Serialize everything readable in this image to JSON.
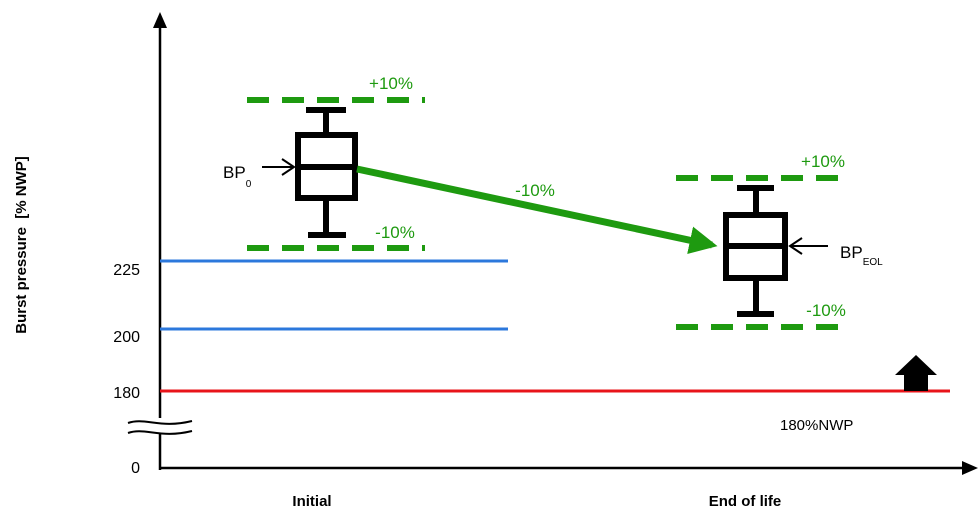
{
  "axes": {
    "ylabel": "Burst pressure  [% NWP]",
    "yticks": [
      "225",
      "200",
      "180",
      "0"
    ],
    "xcategories": [
      "Initial",
      "End of life"
    ]
  },
  "reference_lines": {
    "red_label": "180%NWP"
  },
  "annotations": {
    "initial_upper": "+10%",
    "initial_lower": "-10%",
    "eol_upper": "+10%",
    "eol_lower": "-10%",
    "arrow_label": "-10%",
    "bp0_main": "BP",
    "bp0_sub": "0",
    "bpeol_main": "BP",
    "bpeol_sub": "EOL"
  },
  "colors": {
    "green": "#1e9a10",
    "blue": "#2c78dc",
    "red": "#e8141a",
    "black": "#000000"
  }
}
